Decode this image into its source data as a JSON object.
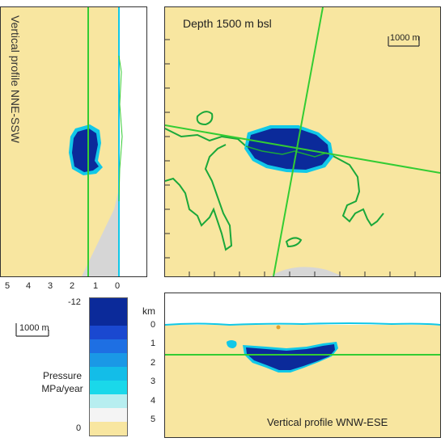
{
  "left_panel": {
    "label": "Vertical profile  NNE-SSW",
    "x_ticks": [
      "5",
      "4",
      "3",
      "2",
      "1",
      "0"
    ]
  },
  "map_panel": {
    "title": "Depth 1500 m bsl",
    "scale_label": "1000 m"
  },
  "bottom_panel": {
    "label": "Vertical profile  WNW-ESE",
    "axis_unit": "km",
    "y_ticks": [
      "0",
      "1",
      "2",
      "3",
      "4",
      "5"
    ]
  },
  "legend": {
    "scale_label": "1000 m",
    "top_value": "-12",
    "bottom_value": "0",
    "title_line1": "Pressure",
    "title_line2": "MPa/year",
    "colors": [
      "#0b2a9a",
      "#1a48d0",
      "#1e6fe3",
      "#1a98e6",
      "#13bde8",
      "#1ad8ea",
      "#b7eef0",
      "#f4f4f4",
      "#f8e6a0"
    ]
  },
  "colors": {
    "background": "#f8e6a0",
    "body_dark": "#0b2a9a",
    "body_halo": "#11c8e8",
    "coast": "#1aa83a",
    "profile_line": "#33cc33",
    "gray_region": "#d6d6d6"
  }
}
